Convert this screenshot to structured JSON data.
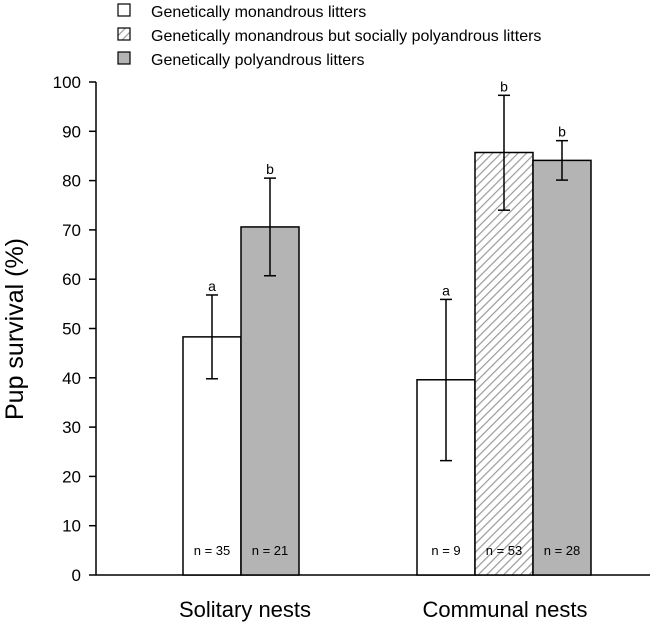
{
  "chart_data": {
    "type": "bar",
    "ylabel": "Pup survival (%)",
    "ylim": [
      0,
      100
    ],
    "yticks": [
      0,
      10,
      20,
      30,
      40,
      50,
      60,
      70,
      80,
      90,
      100
    ],
    "legend": {
      "placement": "top",
      "items": [
        {
          "label": "Genetically monandrous litters",
          "style": "white"
        },
        {
          "label": "Genetically monandrous but socially polyandrous litters",
          "style": "hatched"
        },
        {
          "label": "Genetically polyandrous litters",
          "style": "gray"
        }
      ]
    },
    "groups": [
      {
        "label": "Solitary nests",
        "bars": [
          {
            "series": "Genetically monandrous litters",
            "style": "white",
            "value": 48.3,
            "err_low": 39.8,
            "err_high": 56.8,
            "letter": "a",
            "n_label": "n = 35"
          },
          {
            "series": "Genetically polyandrous litters",
            "style": "gray",
            "value": 70.6,
            "err_low": 60.7,
            "err_high": 80.5,
            "letter": "b",
            "n_label": "n = 21"
          }
        ]
      },
      {
        "label": "Communal nests",
        "bars": [
          {
            "series": "Genetically monandrous litters",
            "style": "white",
            "value": 39.6,
            "err_low": 23.2,
            "err_high": 55.9,
            "letter": "a",
            "n_label": "n = 9"
          },
          {
            "series": "Genetically monandrous but socially polyandrous litters",
            "style": "hatched",
            "value": 85.7,
            "err_low": 74.0,
            "err_high": 97.3,
            "letter": "b",
            "n_label": "n = 53"
          },
          {
            "series": "Genetically polyandrous litters",
            "style": "gray",
            "value": 84.1,
            "err_low": 80.1,
            "err_high": 88.1,
            "letter": "b",
            "n_label": "n = 28"
          }
        ]
      }
    ]
  }
}
